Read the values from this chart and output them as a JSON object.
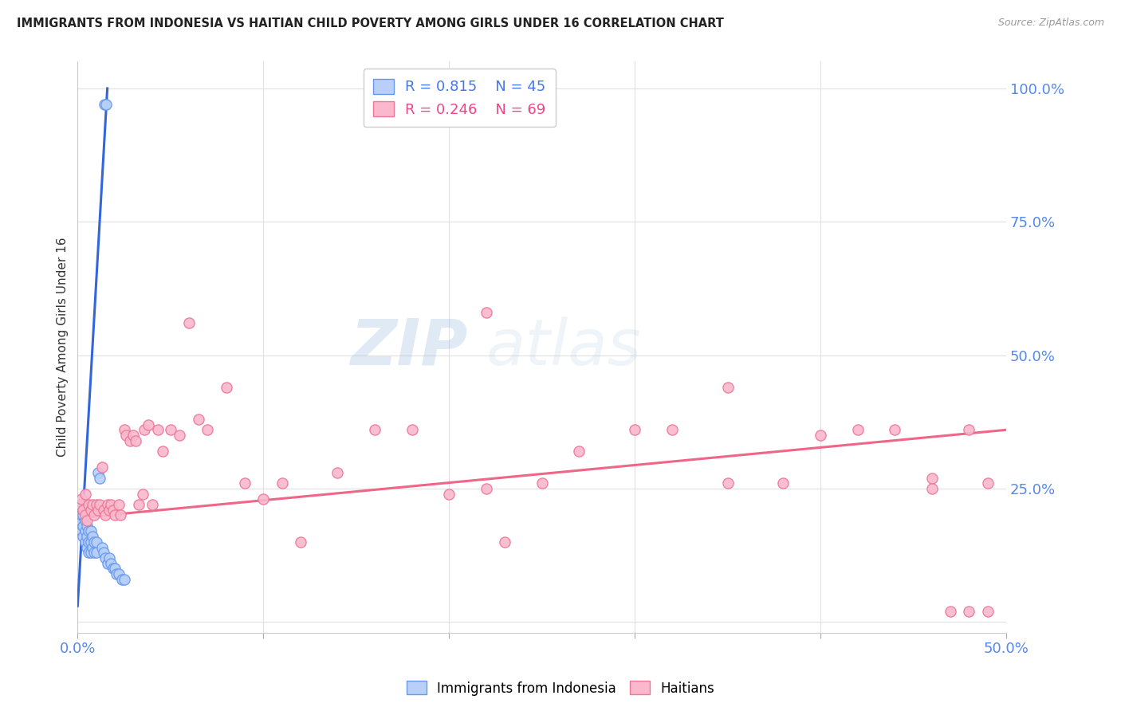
{
  "title": "IMMIGRANTS FROM INDONESIA VS HAITIAN CHILD POVERTY AMONG GIRLS UNDER 16 CORRELATION CHART",
  "source": "Source: ZipAtlas.com",
  "ylabel": "Child Poverty Among Girls Under 16",
  "xlim": [
    0.0,
    0.5
  ],
  "ylim": [
    -0.02,
    1.05
  ],
  "yticks_right": [
    0.0,
    0.25,
    0.5,
    0.75,
    1.0
  ],
  "yticklabels_right": [
    "",
    "25.0%",
    "50.0%",
    "75.0%",
    "100.0%"
  ],
  "xtick_positions": [
    0.0,
    0.1,
    0.2,
    0.3,
    0.4,
    0.5
  ],
  "xticklabels": [
    "0.0%",
    "",
    "",
    "",
    "",
    "50.0%"
  ],
  "background_color": "#ffffff",
  "grid_color": "#e0e0e0",
  "blue_fill": "#b8d0f8",
  "pink_fill": "#f9b8cc",
  "blue_edge": "#6699ee",
  "pink_edge": "#ee7799",
  "blue_line_color": "#3366dd",
  "pink_line_color": "#ee6688",
  "legend_blue_R": "0.815",
  "legend_blue_N": "45",
  "legend_pink_R": "0.246",
  "legend_pink_N": "69",
  "watermark_zip": "ZIP",
  "watermark_atlas": "atlas",
  "blue_scatter_x": [
    0.0005,
    0.001,
    0.001,
    0.0015,
    0.002,
    0.002,
    0.002,
    0.003,
    0.003,
    0.003,
    0.004,
    0.004,
    0.004,
    0.005,
    0.005,
    0.005,
    0.005,
    0.006,
    0.006,
    0.006,
    0.007,
    0.007,
    0.007,
    0.008,
    0.008,
    0.009,
    0.009,
    0.01,
    0.01,
    0.011,
    0.012,
    0.013,
    0.014,
    0.015,
    0.016,
    0.017,
    0.018,
    0.019,
    0.02,
    0.021,
    0.022,
    0.024,
    0.025,
    0.0145,
    0.0155
  ],
  "blue_scatter_y": [
    0.2,
    0.18,
    0.22,
    0.19,
    0.17,
    0.2,
    0.22,
    0.16,
    0.18,
    0.2,
    0.15,
    0.17,
    0.19,
    0.14,
    0.16,
    0.18,
    0.21,
    0.13,
    0.15,
    0.17,
    0.13,
    0.15,
    0.17,
    0.14,
    0.16,
    0.13,
    0.15,
    0.13,
    0.15,
    0.28,
    0.27,
    0.14,
    0.13,
    0.12,
    0.11,
    0.12,
    0.11,
    0.1,
    0.1,
    0.09,
    0.09,
    0.08,
    0.08,
    0.97,
    0.97
  ],
  "pink_scatter_x": [
    0.001,
    0.002,
    0.003,
    0.004,
    0.004,
    0.005,
    0.006,
    0.007,
    0.008,
    0.009,
    0.01,
    0.011,
    0.012,
    0.013,
    0.014,
    0.015,
    0.016,
    0.017,
    0.018,
    0.019,
    0.02,
    0.022,
    0.023,
    0.025,
    0.026,
    0.028,
    0.03,
    0.031,
    0.033,
    0.035,
    0.036,
    0.038,
    0.04,
    0.043,
    0.046,
    0.05,
    0.055,
    0.06,
    0.065,
    0.07,
    0.08,
    0.09,
    0.1,
    0.11,
    0.12,
    0.14,
    0.16,
    0.18,
    0.2,
    0.22,
    0.25,
    0.27,
    0.3,
    0.32,
    0.35,
    0.38,
    0.4,
    0.42,
    0.44,
    0.46,
    0.48,
    0.49,
    0.22,
    0.35,
    0.46,
    0.48,
    0.49,
    0.23,
    0.47
  ],
  "pink_scatter_y": [
    0.22,
    0.23,
    0.21,
    0.2,
    0.24,
    0.19,
    0.22,
    0.21,
    0.22,
    0.2,
    0.22,
    0.21,
    0.22,
    0.29,
    0.21,
    0.2,
    0.22,
    0.21,
    0.22,
    0.21,
    0.2,
    0.22,
    0.2,
    0.36,
    0.35,
    0.34,
    0.35,
    0.34,
    0.22,
    0.24,
    0.36,
    0.37,
    0.22,
    0.36,
    0.32,
    0.36,
    0.35,
    0.56,
    0.38,
    0.36,
    0.44,
    0.26,
    0.23,
    0.26,
    0.15,
    0.28,
    0.36,
    0.36,
    0.24,
    0.58,
    0.26,
    0.32,
    0.36,
    0.36,
    0.44,
    0.26,
    0.35,
    0.36,
    0.36,
    0.27,
    0.36,
    0.26,
    0.25,
    0.26,
    0.25,
    0.02,
    0.02,
    0.15,
    0.02
  ],
  "blue_line_x": [
    0.0,
    0.016
  ],
  "blue_line_y": [
    0.03,
    1.0
  ],
  "pink_line_x": [
    0.0,
    0.5
  ],
  "pink_line_y": [
    0.195,
    0.36
  ]
}
